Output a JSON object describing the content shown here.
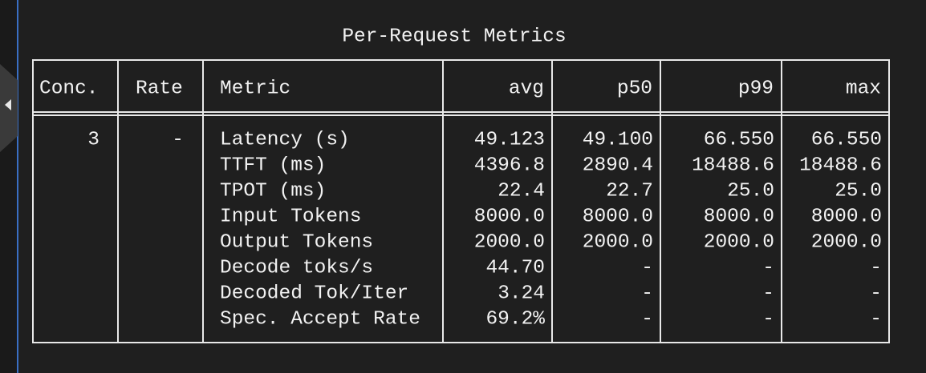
{
  "title": "Per-Request Metrics",
  "table": {
    "header": [
      "Conc.",
      "Rate",
      "Metric",
      "avg",
      "p50",
      "p99",
      "max"
    ],
    "conc": "3",
    "rate": "-",
    "rows": [
      [
        "Latency (s)",
        "49.123",
        "49.100",
        "66.550",
        "66.550"
      ],
      [
        "TTFT (ms)",
        "4396.8",
        "2890.4",
        "18488.6",
        "18488.6"
      ],
      [
        "TPOT (ms)",
        "22.4",
        "22.7",
        "25.0",
        "25.0"
      ],
      [
        "Input Tokens",
        "8000.0",
        "8000.0",
        "8000.0",
        "8000.0"
      ],
      [
        "Output Tokens",
        "2000.0",
        "2000.0",
        "2000.0",
        "2000.0"
      ],
      [
        "Decode toks/s",
        "44.70",
        "-",
        "-",
        "-"
      ],
      [
        "Decoded Tok/Iter",
        "3.24",
        "-",
        "-",
        "-"
      ],
      [
        "Spec. Accept Rate",
        "69.2%",
        "-",
        "-",
        "-"
      ]
    ]
  }
}
